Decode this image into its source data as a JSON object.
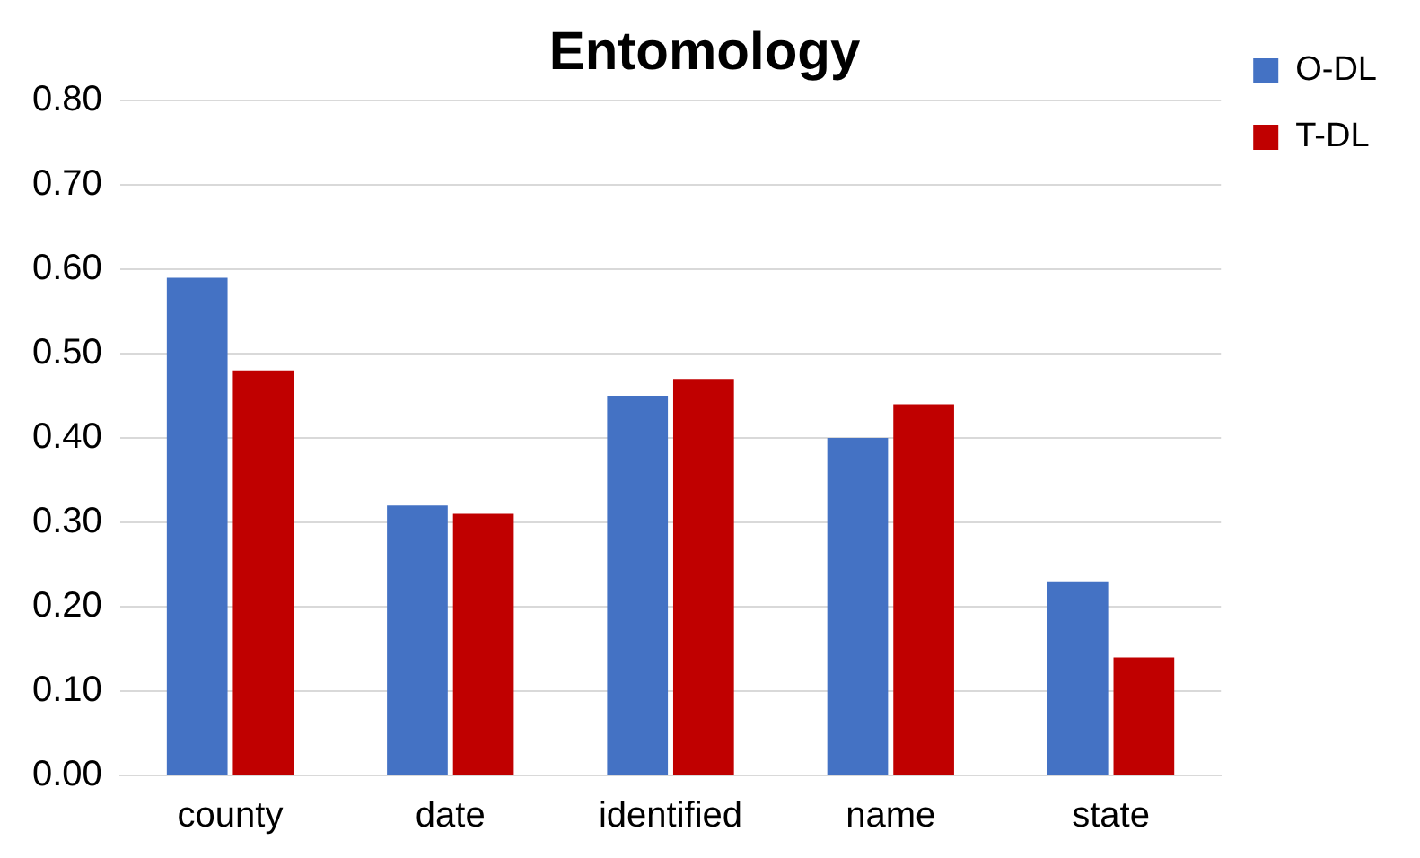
{
  "chart_data": {
    "type": "bar",
    "title": "Entomology",
    "categories": [
      "county",
      "date",
      "identified",
      "name",
      "state"
    ],
    "series": [
      {
        "name": "O-DL",
        "color": "#4472c4",
        "values": [
          0.59,
          0.32,
          0.45,
          0.4,
          0.23
        ]
      },
      {
        "name": "T-DL",
        "color": "#c00000",
        "values": [
          0.48,
          0.31,
          0.47,
          0.44,
          0.14
        ]
      }
    ],
    "ylim": [
      0,
      0.8
    ],
    "yticks": [
      {
        "value": 0,
        "label": "0.00"
      },
      {
        "value": 0.1,
        "label": "0.10"
      },
      {
        "value": 0.2,
        "label": "0.20"
      },
      {
        "value": 0.3,
        "label": "0.30"
      },
      {
        "value": 0.4,
        "label": "0.40"
      },
      {
        "value": 0.5,
        "label": "0.50"
      },
      {
        "value": 0.6,
        "label": "0.60"
      },
      {
        "value": 0.7,
        "label": "0.70"
      },
      {
        "value": 0.8,
        "label": "0.80"
      }
    ],
    "grid": "y",
    "legend": "top right"
  }
}
